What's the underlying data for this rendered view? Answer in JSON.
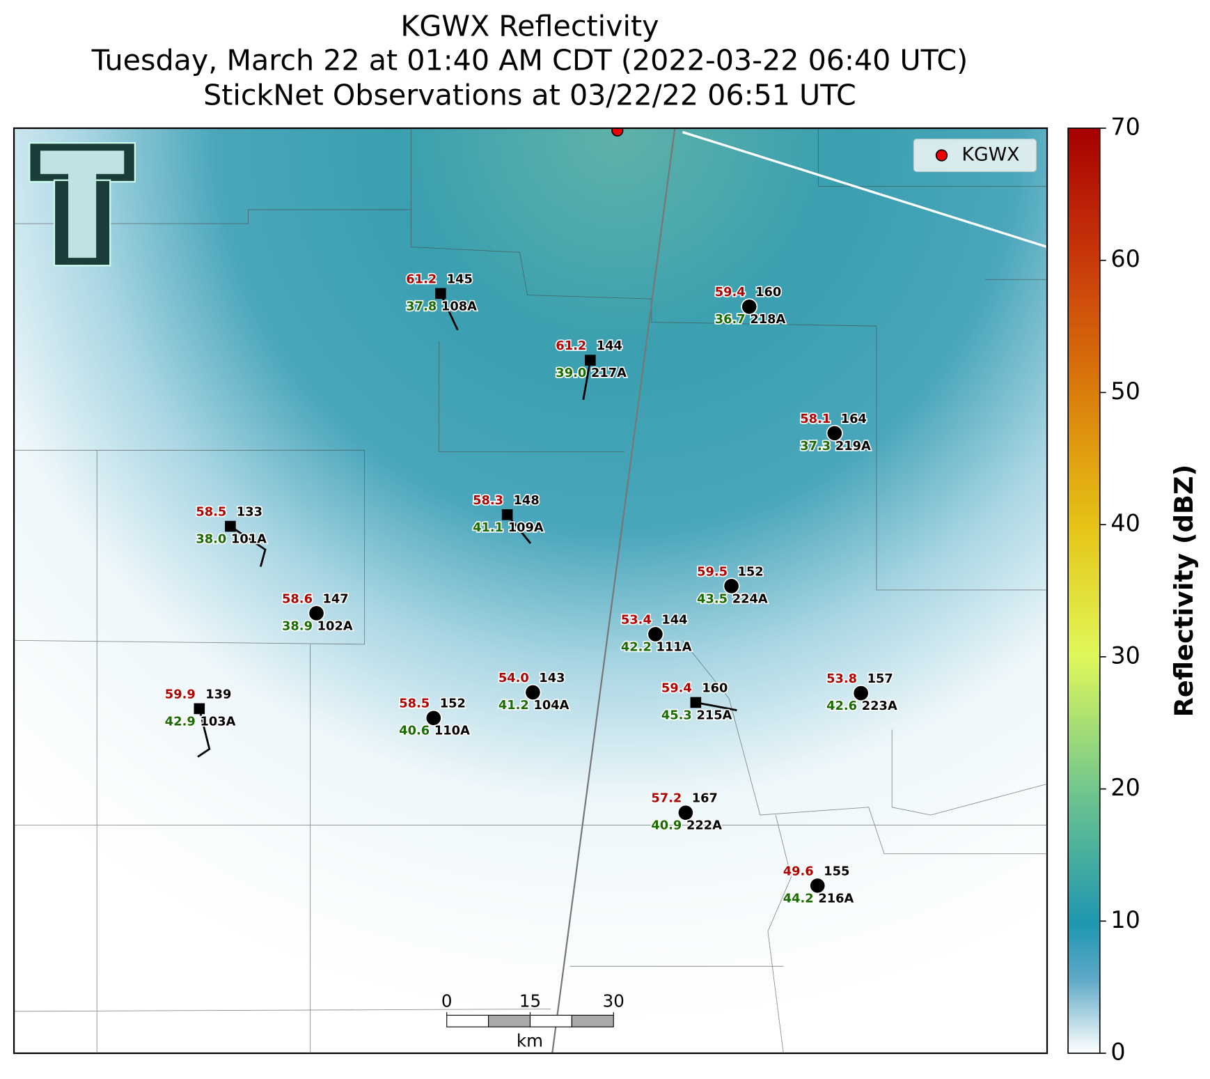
{
  "header": {
    "title": "KGWX Reflectivity",
    "subtitle": "Tuesday, March 22 at 01:40 AM CDT (2022-03-22 06:40 UTC)",
    "observations": "StickNet Observations at 03/22/22 06:51 UTC"
  },
  "legend": {
    "label": "KGWX"
  },
  "colorbar": {
    "label": "Reflectivity (dBZ)",
    "lim": [
      0,
      70
    ],
    "ticks": [
      0,
      10,
      20,
      30,
      40,
      50,
      60,
      70
    ]
  },
  "scale_bar": {
    "ticks": [
      0,
      15,
      30
    ],
    "unit": "km"
  },
  "stations": [
    {
      "id": "108A",
      "red": "61.2",
      "black": "145",
      "green": "37.8"
    },
    {
      "id": "217A",
      "red": "61.2",
      "black": "144",
      "green": "39.0"
    },
    {
      "id": "218A",
      "red": "59.4",
      "black": "160",
      "green": "36.7"
    },
    {
      "id": "219A",
      "red": "58.1",
      "black": "164",
      "green": "37.3"
    },
    {
      "id": "101A",
      "red": "58.5",
      "black": "133",
      "green": "38.0"
    },
    {
      "id": "109A",
      "red": "58.3",
      "black": "148",
      "green": "41.1"
    },
    {
      "id": "224A",
      "red": "59.5",
      "black": "152",
      "green": "43.5"
    },
    {
      "id": "102A",
      "red": "58.6",
      "black": "147",
      "green": "38.9"
    },
    {
      "id": "111A",
      "red": "53.4",
      "black": "144",
      "green": "42.2"
    },
    {
      "id": "104A",
      "red": "54.0",
      "black": "143",
      "green": "41.2"
    },
    {
      "id": "215A",
      "red": "59.4",
      "black": "160",
      "green": "45.3"
    },
    {
      "id": "223A",
      "red": "53.8",
      "black": "157",
      "green": "42.6"
    },
    {
      "id": "103A",
      "red": "59.9",
      "black": "139",
      "green": "42.9"
    },
    {
      "id": "110A",
      "red": "58.5",
      "black": "152",
      "green": "40.6"
    },
    {
      "id": "222A",
      "red": "57.2",
      "black": "167",
      "green": "40.9"
    },
    {
      "id": "216A",
      "red": "49.6",
      "black": "155",
      "green": "44.2"
    }
  ]
}
